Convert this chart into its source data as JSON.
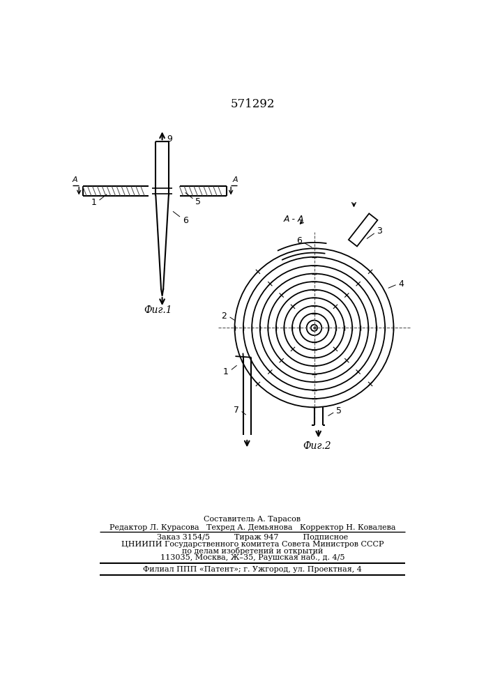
{
  "title": "571292",
  "fig1_label": "Фиг.1",
  "fig2_label": "Фиг.2",
  "section_label": "A - A",
  "bg_color": "#ffffff",
  "line_color": "#000000",
  "text_color": "#000000",
  "footer_lines": [
    "Составитель А. Тарасов",
    "Редактор Л. Курасова   Техред А. Демьянова   Корректор Н. Ковалева",
    "Заказ 3154/5          Тираж 947          Подписное",
    "ЦНИИПИ Государственного комитета Совета Министров СССР",
    "по делам изобретений и открытий",
    "113035, Москва, Ж–35, Раушская наб., д. 4/5",
    "Филиал ППП «Патент»; г. Ужгород, ул. Проектная, 4"
  ]
}
